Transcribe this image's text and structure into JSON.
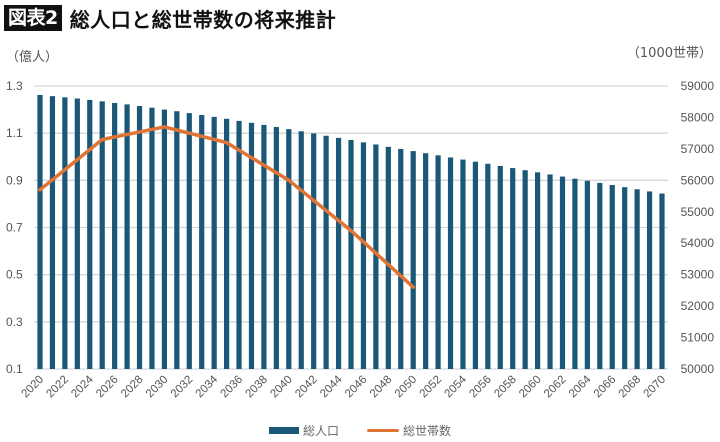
{
  "header": {
    "badge": "図表2",
    "title": "総人口と総世帯数の将来推計"
  },
  "axes": {
    "left_unit": "（億人）",
    "right_unit": "（1000世帯）",
    "left_ticks": [
      "1.3",
      "1.1",
      "0.9",
      "0.7",
      "0.5",
      "0.3",
      "0.1"
    ],
    "right_ticks": [
      "59000",
      "58000",
      "57000",
      "56000",
      "55000",
      "54000",
      "53000",
      "52000",
      "51000",
      "50000"
    ]
  },
  "legend": {
    "bar_label": "総人口",
    "line_label": "総世帯数"
  },
  "colors": {
    "bar": "#1b5777",
    "line": "#e07434",
    "grid": "#d6d6d6"
  },
  "chart_data": {
    "type": "bar+line",
    "title": "総人口と総世帯数の将来推計",
    "xlabel": "",
    "ylabel": "億人",
    "y2label": "1000世帯",
    "ylim": [
      0.1,
      1.3
    ],
    "y2lim": [
      50000,
      59000
    ],
    "grid": true,
    "legend_position": "bottom",
    "x_tick_labels": [
      "2020",
      "2022",
      "2024",
      "2026",
      "2028",
      "2030",
      "2032",
      "2034",
      "2036",
      "2038",
      "2040",
      "2042",
      "2044",
      "2046",
      "2048",
      "2050",
      "2052",
      "2054",
      "2056",
      "2058",
      "2060",
      "2062",
      "2064",
      "2066",
      "2068",
      "2070"
    ],
    "x": [
      2020,
      2021,
      2022,
      2023,
      2024,
      2025,
      2026,
      2027,
      2028,
      2029,
      2030,
      2031,
      2032,
      2033,
      2034,
      2035,
      2036,
      2037,
      2038,
      2039,
      2040,
      2041,
      2042,
      2043,
      2044,
      2045,
      2046,
      2047,
      2048,
      2049,
      2050,
      2051,
      2052,
      2053,
      2054,
      2055,
      2056,
      2057,
      2058,
      2059,
      2060,
      2061,
      2062,
      2063,
      2064,
      2065,
      2066,
      2067,
      2068,
      2069,
      2070
    ],
    "series": [
      {
        "name": "総人口",
        "type": "bar",
        "axis": "left",
        "values": [
          1.262,
          1.257,
          1.252,
          1.247,
          1.241,
          1.235,
          1.228,
          1.222,
          1.215,
          1.208,
          1.2,
          1.193,
          1.185,
          1.177,
          1.169,
          1.161,
          1.152,
          1.144,
          1.135,
          1.126,
          1.117,
          1.108,
          1.099,
          1.089,
          1.08,
          1.071,
          1.061,
          1.052,
          1.042,
          1.033,
          1.024,
          1.015,
          1.006,
          0.997,
          0.988,
          0.979,
          0.97,
          0.961,
          0.952,
          0.943,
          0.934,
          0.925,
          0.916,
          0.907,
          0.898,
          0.889,
          0.88,
          0.871,
          0.862,
          0.853,
          0.844
        ]
      },
      {
        "name": "総世帯数",
        "type": "line",
        "axis": "right",
        "x": [
          2020,
          2025,
          2030,
          2035,
          2040,
          2045,
          2050
        ],
        "values": [
          55700,
          57300,
          57700,
          57200,
          56000,
          54400,
          52600
        ]
      }
    ]
  }
}
